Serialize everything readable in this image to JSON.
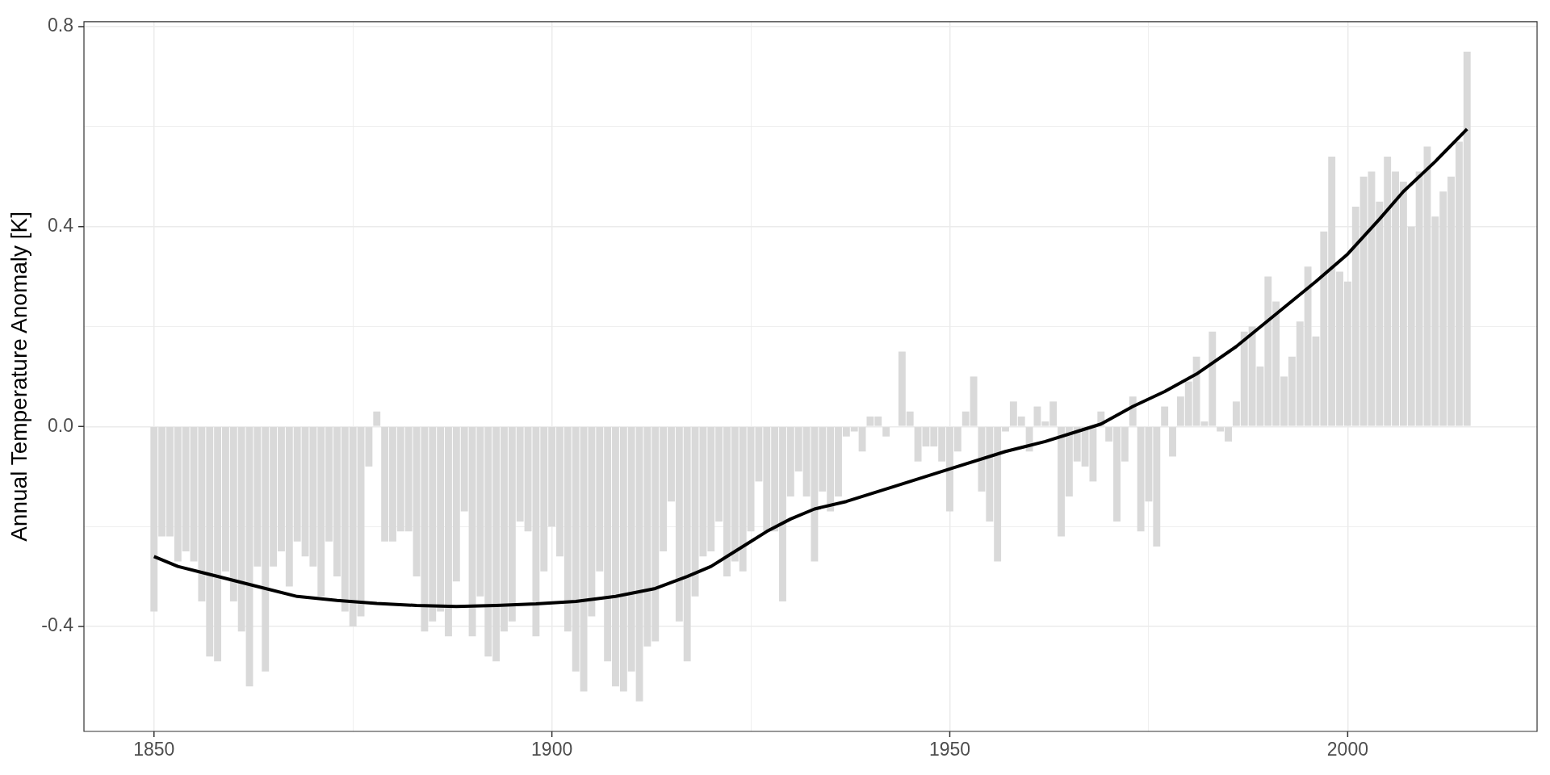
{
  "chart_data": {
    "type": "bar",
    "ylabel": "Annual Temperature Anomaly [K]",
    "x": [
      1850,
      1851,
      1852,
      1853,
      1854,
      1855,
      1856,
      1857,
      1858,
      1859,
      1860,
      1861,
      1862,
      1863,
      1864,
      1865,
      1866,
      1867,
      1868,
      1869,
      1870,
      1871,
      1872,
      1873,
      1874,
      1875,
      1876,
      1877,
      1878,
      1879,
      1880,
      1881,
      1882,
      1883,
      1884,
      1885,
      1886,
      1887,
      1888,
      1889,
      1890,
      1891,
      1892,
      1893,
      1894,
      1895,
      1896,
      1897,
      1898,
      1899,
      1900,
      1901,
      1902,
      1903,
      1904,
      1905,
      1906,
      1907,
      1908,
      1909,
      1910,
      1911,
      1912,
      1913,
      1914,
      1915,
      1916,
      1917,
      1918,
      1919,
      1920,
      1921,
      1922,
      1923,
      1924,
      1925,
      1926,
      1927,
      1928,
      1929,
      1930,
      1931,
      1932,
      1933,
      1934,
      1935,
      1936,
      1937,
      1938,
      1939,
      1940,
      1941,
      1942,
      1943,
      1944,
      1945,
      1946,
      1947,
      1948,
      1949,
      1950,
      1951,
      1952,
      1953,
      1954,
      1955,
      1956,
      1957,
      1958,
      1959,
      1960,
      1961,
      1962,
      1963,
      1964,
      1965,
      1966,
      1967,
      1968,
      1969,
      1970,
      1971,
      1972,
      1973,
      1974,
      1975,
      1976,
      1977,
      1978,
      1979,
      1980,
      1981,
      1982,
      1983,
      1984,
      1985,
      1986,
      1987,
      1988,
      1989,
      1990,
      1991,
      1992,
      1993,
      1994,
      1995,
      1996,
      1997,
      1998,
      1999,
      2000,
      2001,
      2002,
      2003,
      2004,
      2005,
      2006,
      2007,
      2008,
      2009,
      2010,
      2011,
      2012,
      2013,
      2014,
      2015
    ],
    "series": [
      {
        "color": "#d9d9d9",
        "values": [
          -0.37,
          -0.22,
          -0.22,
          -0.27,
          -0.25,
          -0.27,
          -0.35,
          -0.46,
          -0.47,
          -0.29,
          -0.35,
          -0.41,
          -0.52,
          -0.28,
          -0.49,
          -0.28,
          -0.25,
          -0.32,
          -0.23,
          -0.26,
          -0.28,
          -0.34,
          -0.23,
          -0.3,
          -0.37,
          -0.4,
          -0.38,
          -0.08,
          0.03,
          -0.23,
          -0.23,
          -0.21,
          -0.21,
          -0.3,
          -0.41,
          -0.39,
          -0.37,
          -0.42,
          -0.31,
          -0.17,
          -0.42,
          -0.34,
          -0.46,
          -0.47,
          -0.41,
          -0.39,
          -0.19,
          -0.21,
          -0.42,
          -0.29,
          -0.2,
          -0.26,
          -0.41,
          -0.49,
          -0.53,
          -0.38,
          -0.29,
          -0.47,
          -0.52,
          -0.53,
          -0.49,
          -0.55,
          -0.44,
          -0.43,
          -0.25,
          -0.15,
          -0.39,
          -0.47,
          -0.34,
          -0.26,
          -0.25,
          -0.19,
          -0.3,
          -0.27,
          -0.29,
          -0.21,
          -0.11,
          -0.21,
          -0.21,
          -0.35,
          -0.14,
          -0.09,
          -0.14,
          -0.27,
          -0.13,
          -0.17,
          -0.14,
          -0.02,
          -0.01,
          -0.05,
          0.02,
          0.02,
          -0.02,
          0,
          0.15,
          0.03,
          -0.07,
          -0.04,
          -0.04,
          -0.07,
          -0.17,
          -0.05,
          0.03,
          0.1,
          -0.13,
          -0.19,
          -0.27,
          -0.01,
          0.05,
          0.02,
          -0.05,
          0.04,
          0.01,
          0.05,
          -0.22,
          -0.14,
          -0.07,
          -0.08,
          -0.11,
          0.03,
          -0.03,
          -0.19,
          -0.07,
          0.06,
          -0.21,
          -0.15,
          -0.24,
          0.04,
          -0.06,
          0.06,
          0.09,
          0.14,
          0.01,
          0.19,
          -0.01,
          -0.03,
          0.05,
          0.19,
          0.2,
          0.12,
          0.3,
          0.25,
          0.1,
          0.14,
          0.21,
          0.32,
          0.18,
          0.39,
          0.54,
          0.31,
          0.29,
          0.44,
          0.5,
          0.51,
          0.45,
          0.54,
          0.51,
          0.49,
          0.4,
          0.51,
          0.56,
          0.42,
          0.47,
          0.5,
          0.57,
          0.75
        ]
      },
      {
        "type": "line",
        "color": "#000000",
        "x": [
          1850,
          1853,
          1858,
          1863,
          1868,
          1873,
          1878,
          1883,
          1888,
          1893,
          1898,
          1903,
          1908,
          1913,
          1917,
          1920,
          1922,
          1925,
          1927,
          1930,
          1933,
          1937,
          1943,
          1950,
          1957,
          1962,
          1966,
          1969,
          1973,
          1977,
          1981,
          1986,
          1991,
          1996,
          2000,
          2004,
          2007,
          2011,
          2015
        ],
        "values": [
          -0.26,
          -0.28,
          -0.3,
          -0.32,
          -0.34,
          -0.348,
          -0.354,
          -0.358,
          -0.36,
          -0.358,
          -0.355,
          -0.35,
          -0.34,
          -0.324,
          -0.3,
          -0.28,
          -0.26,
          -0.23,
          -0.21,
          -0.185,
          -0.165,
          -0.15,
          -0.12,
          -0.085,
          -0.05,
          -0.03,
          -0.01,
          0.005,
          0.04,
          0.07,
          0.105,
          0.16,
          0.225,
          0.29,
          0.345,
          0.415,
          0.47,
          0.53,
          0.595
        ]
      }
    ],
    "xlim": [
      1841.2,
      2023.8
    ],
    "ylim": [
      -0.61,
      0.81
    ],
    "xticks": [
      1850,
      {
        "value": 1875,
        "label": null
      },
      1900,
      {
        "value": 1925,
        "label": null
      },
      1950,
      {
        "value": 1975,
        "label": null
      },
      2000
    ],
    "yticks": [
      -0.4,
      {
        "value": -0.2,
        "label": null
      },
      {
        "value": 0,
        "label": "0.0"
      },
      {
        "value": 0.2,
        "label": null
      },
      0.4,
      {
        "value": 0.6,
        "label": null
      },
      0.8
    ],
    "grid": true
  }
}
